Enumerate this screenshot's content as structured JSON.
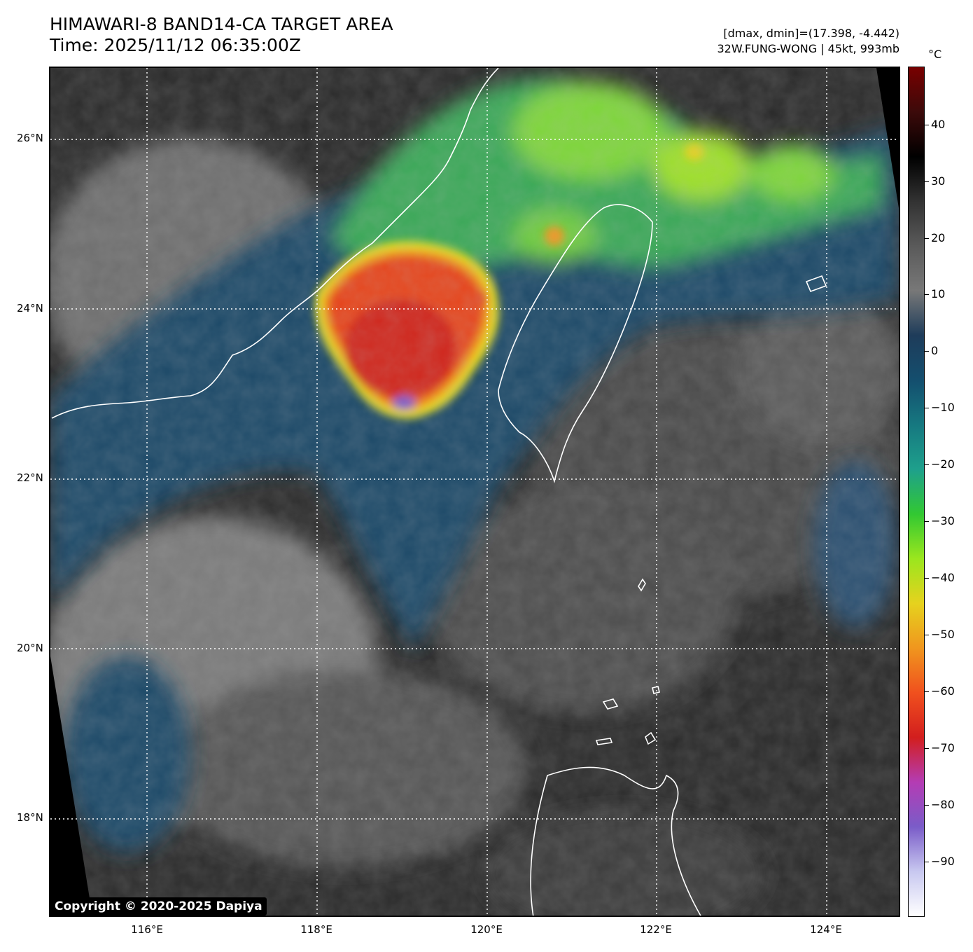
{
  "header": {
    "title": "HIMAWARI-8 BAND14-CA TARGET AREA",
    "time": "Time: 2025/11/12 06:35:00Z",
    "range": "[dmax, dmin]=(17.398, -4.442)",
    "storm": "32W.FUNG-WONG | 45kt, 993mb"
  },
  "map": {
    "latitudes": [
      "26°N",
      "24°N",
      "22°N",
      "20°N",
      "18°N"
    ],
    "longitudes": [
      "116°E",
      "118°E",
      "120°E",
      "122°E",
      "124°E"
    ],
    "copyright": "Copyright © 2020-2025 Dapiya"
  },
  "colorbar": {
    "unit": "°C",
    "ticks": [
      "40",
      "30",
      "20",
      "10",
      "0",
      "−10",
      "−20",
      "−30",
      "−40",
      "−50",
      "−60",
      "−70",
      "−80",
      "−90"
    ],
    "gradient_colors": [
      "#ffffff",
      "#c8c8f0",
      "#7a5cc8",
      "#b43cb4",
      "#d21e1e",
      "#f0501e",
      "#f0961e",
      "#e6d21e",
      "#9be61e",
      "#32c832",
      "#1ea08c",
      "#167880",
      "#144e6e",
      "#1e3c5a",
      "#787878",
      "#5a5a5a",
      "#323232",
      "#000000",
      "#3c0a0a",
      "#780000"
    ]
  }
}
